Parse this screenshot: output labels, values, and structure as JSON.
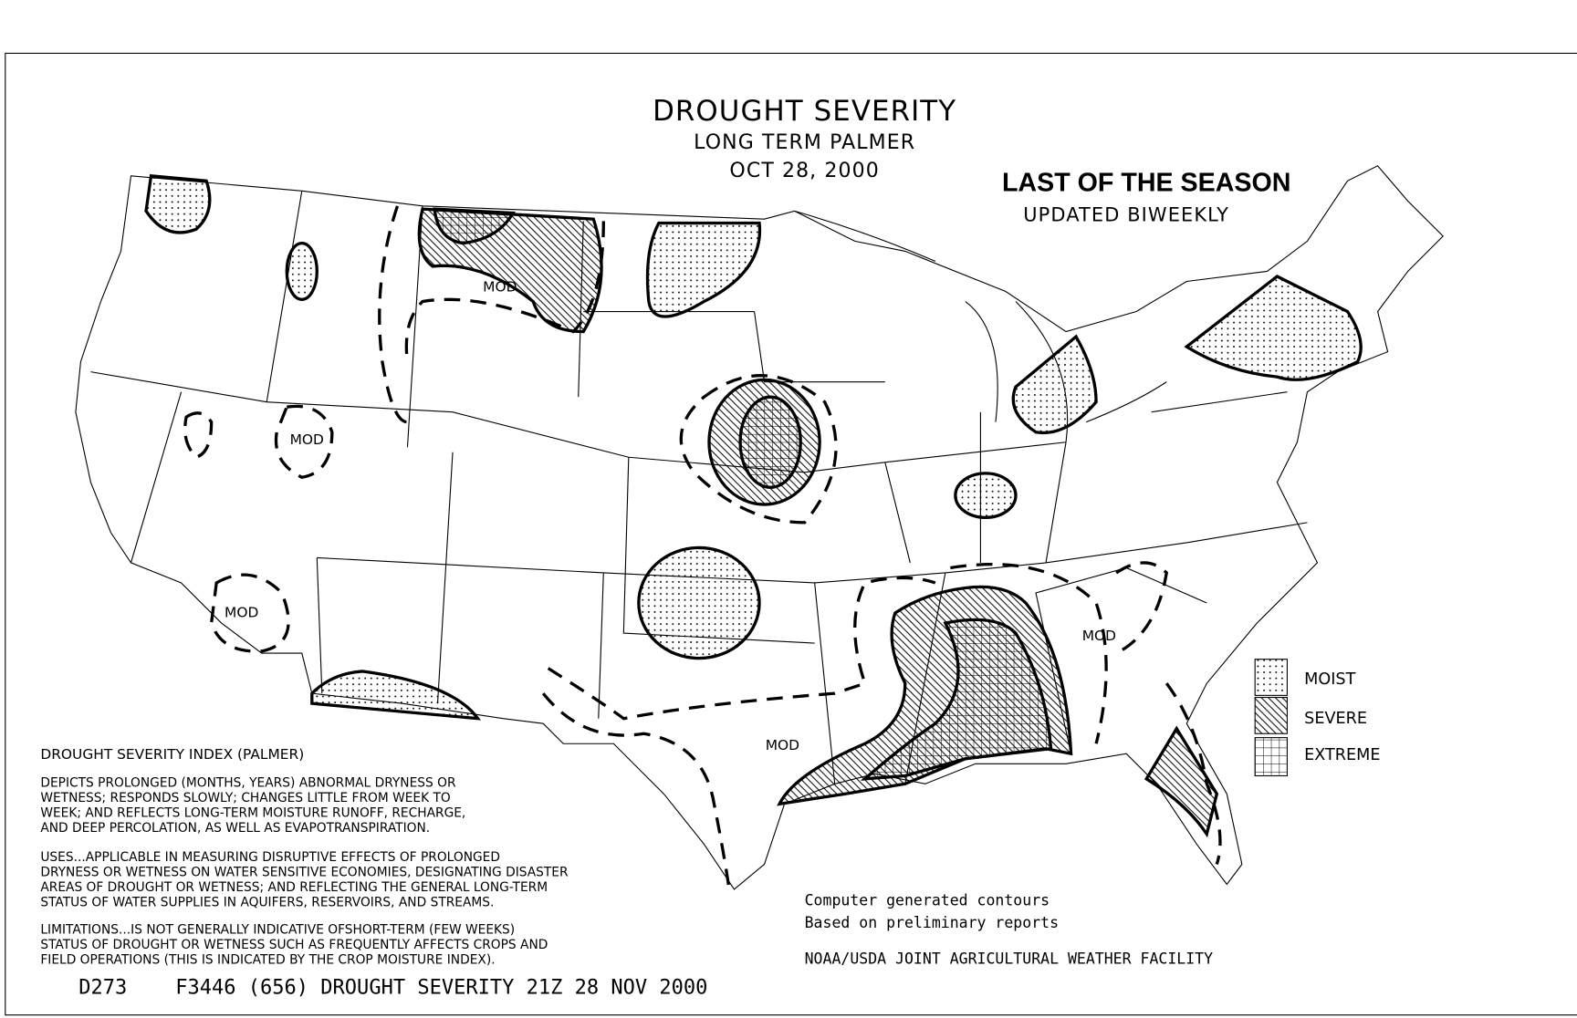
{
  "title": {
    "line1": "DROUGHT SEVERITY",
    "line2": "LONG TERM PALMER",
    "line3": "OCT 28, 2000"
  },
  "banner": {
    "headline": "LAST OF THE SEASON",
    "subline": "UPDATED BIWEEKLY"
  },
  "map": {
    "region_labels": [
      "MOD",
      "MOD",
      "MOD",
      "MOD",
      "MOD"
    ]
  },
  "legend": {
    "items": [
      "MOIST",
      "SEVERE",
      "EXTREME"
    ]
  },
  "notes": {
    "heading": "DROUGHT SEVERITY INDEX (PALMER)",
    "paragraphs": [
      [
        "DEPICTS PROLONGED (MONTHS, YEARS) ABNORMAL DRYNESS OR",
        "WETNESS; RESPONDS SLOWLY; CHANGES LITTLE FROM WEEK TO",
        "WEEK; AND REFLECTS LONG-TERM MOISTURE RUNOFF, RECHARGE,",
        "AND DEEP PERCOLATION, AS WELL AS EVAPOTRANSPIRATION."
      ],
      [
        "USES...APPLICABLE IN MEASURING DISRUPTIVE EFFECTS OF PROLONGED",
        "DRYNESS OR WETNESS ON WATER SENSITIVE ECONOMIES, DESIGNATING DISASTER",
        "AREAS OF DROUGHT OR WETNESS; AND REFLECTING THE GENERAL LONG-TERM",
        "STATUS OF WATER SUPPLIES IN AQUIFERS, RESERVOIRS, AND STREAMS."
      ],
      [
        "LIMITATIONS...IS NOT GENERALLY INDICATIVE OFSHORT-TERM (FEW WEEKS)",
        "STATUS OF DROUGHT OR WETNESS SUCH AS FREQUENTLY AFFECTS CROPS AND",
        "FIELD OPERATIONS (THIS IS INDICATED BY THE CROP MOISTURE INDEX)."
      ]
    ]
  },
  "credits": {
    "lines": [
      "Computer generated contours",
      "Based on preliminary reports",
      "NOAA/USDA JOINT AGRICULTURAL WEATHER FACILITY"
    ]
  },
  "footer": "D273    F3446 (656) DROUGHT SEVERITY 21Z 28 NOV 2000"
}
